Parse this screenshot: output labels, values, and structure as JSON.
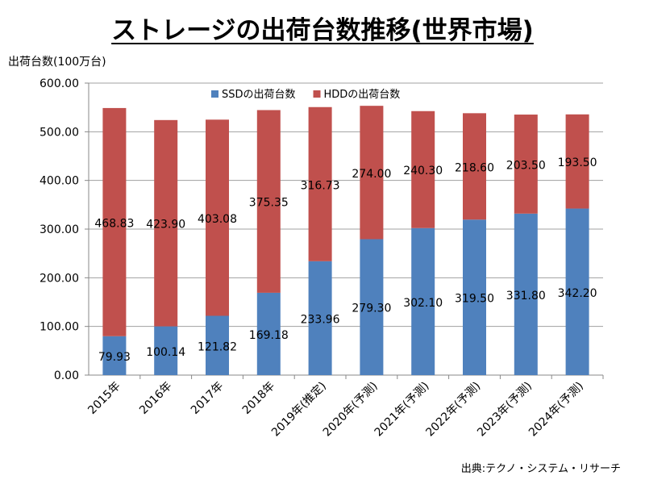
{
  "chart_data": {
    "type": "bar",
    "stacked": true,
    "title": "ストレージの出荷台数推移(世界市場)",
    "ylabel": "出荷台数(100万台)",
    "xlabel": "",
    "ylim": [
      0,
      600
    ],
    "yticks": [
      "0.00",
      "100.00",
      "200.00",
      "300.00",
      "400.00",
      "500.00",
      "600.00"
    ],
    "grid": true,
    "legend_position": "top",
    "categories": [
      "2015年",
      "2016年",
      "2017年",
      "2018年",
      "2019年(推定)",
      "2020年(予測)",
      "2021年(予測)",
      "2022年(予測)",
      "2023年(予測)",
      "2024年(予測)"
    ],
    "series": [
      {
        "name": "SSDの出荷台数",
        "color": "#4f81bd",
        "values": [
          79.93,
          100.14,
          121.82,
          169.18,
          233.96,
          279.3,
          302.1,
          319.5,
          331.8,
          342.2
        ],
        "labels": [
          "79.93",
          "100.14",
          "121.82",
          "169.18",
          "233.96",
          "279.30",
          "302.10",
          "319.50",
          "331.80",
          "342.20"
        ]
      },
      {
        "name": "HDDの出荷台数",
        "color": "#c0504d",
        "values": [
          468.83,
          423.9,
          403.08,
          375.35,
          316.73,
          274.0,
          240.3,
          218.6,
          203.5,
          193.5
        ],
        "labels": [
          "468.83",
          "423.90",
          "403.08",
          "375.35",
          "316.73",
          "274.00",
          "240.30",
          "218.60",
          "203.50",
          "193.50"
        ]
      }
    ],
    "source": "出典:テクノ・システム・リサーチ"
  }
}
